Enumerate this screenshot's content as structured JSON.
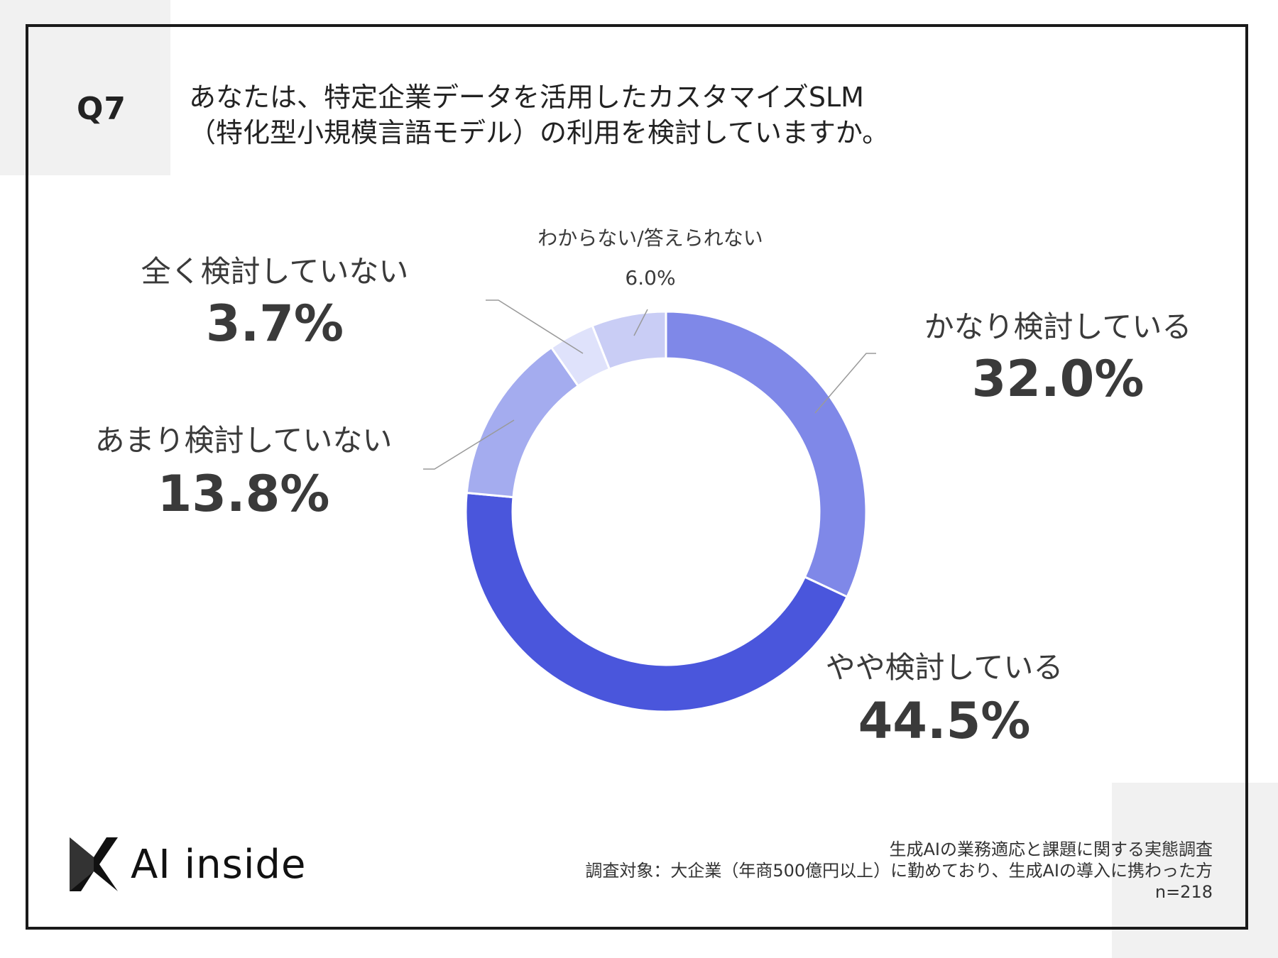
{
  "header": {
    "question_number": "Q7",
    "title_line1": "あなたは、特定企業データを活用したカスタマイズSLM",
    "title_line2": "（特化型小規模言語モデル）の利用を検討していますか。"
  },
  "chart_data": {
    "type": "pie",
    "subtype": "donut",
    "title": "あなたは、特定企業データを活用したカスタマイズSLM（特化型小規模言語モデル）の利用を検討していますか。",
    "categories": [
      "かなり検討している",
      "やや検討している",
      "あまり検討していない",
      "全く検討していない",
      "わからない/答えられない"
    ],
    "values": [
      32.0,
      44.5,
      13.8,
      3.7,
      6.0
    ],
    "value_labels": [
      "32.0%",
      "44.5%",
      "13.8%",
      "3.7%",
      "6.0%"
    ],
    "colors": [
      "#7f88e8",
      "#4a56dc",
      "#a4acef",
      "#dfe2fb",
      "#c9cdf5"
    ],
    "unit": "%"
  },
  "footer": {
    "logo_text": "AI inside",
    "survey_title": "生成AIの業務適応と課題に関する実態調査",
    "survey_target": "調査対象：大企業（年商500億円以上）に勤めており、生成AIの導入に携わった方",
    "sample_size": "n=218"
  }
}
